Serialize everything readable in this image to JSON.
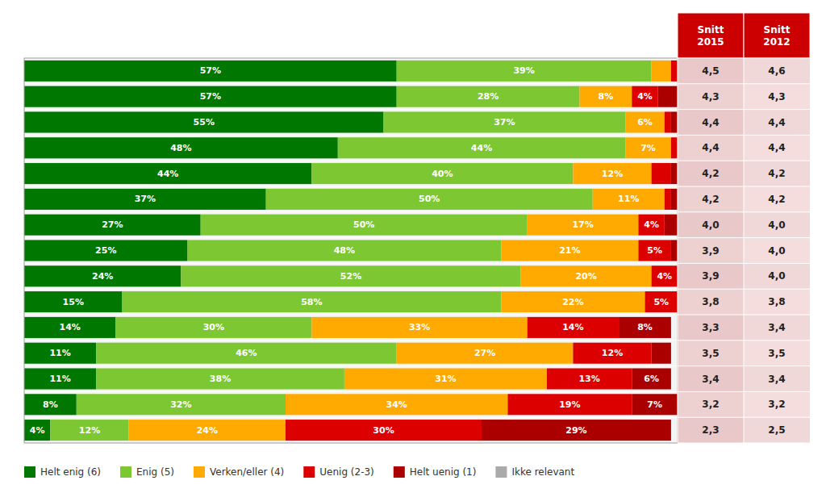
{
  "chart_data": {
    "type": "bar",
    "orientation": "horizontal",
    "stacked": true,
    "data_labels": true,
    "tick_labels": false,
    "xlim": [
      0,
      100
    ],
    "categories": [
      null,
      null,
      null,
      null,
      null,
      null,
      null,
      null,
      null,
      null,
      null,
      null,
      null,
      null,
      null
    ],
    "series": [
      {
        "name": "Helt enig (6)",
        "color": "#007700",
        "values": [
          57,
          57,
          55,
          48,
          44,
          37,
          27,
          25,
          24,
          15,
          14,
          11,
          11,
          8,
          4
        ],
        "value_labels": [
          "57%",
          "57%",
          "55%",
          "48%",
          "44%",
          "37%",
          "27%",
          "25%",
          "24%",
          "15%",
          "14%",
          "11%",
          "11%",
          "8%",
          "4%"
        ]
      },
      {
        "name": "Enig (5)",
        "color": "#7DC832",
        "values": [
          39,
          28,
          37,
          44,
          40,
          50,
          50,
          48,
          52,
          58,
          30,
          46,
          38,
          32,
          12
        ],
        "value_labels": [
          "39%",
          "28%",
          "37%",
          "44%",
          "40%",
          "50%",
          "50%",
          "48%",
          "52%",
          "58%",
          "30%",
          "46%",
          "38%",
          "32%",
          "12%"
        ]
      },
      {
        "name": "Verken/eller (4)",
        "color": "#FFAA00",
        "values": [
          3,
          8,
          6,
          7,
          12,
          11,
          17,
          21,
          20,
          22,
          33,
          27,
          31,
          34,
          24
        ],
        "value_labels": [
          null,
          "8%",
          "6%",
          "7%",
          "12%",
          "11%",
          "17%",
          "21%",
          "20%",
          "22%",
          "33%",
          "27%",
          "31%",
          "34%",
          "24%"
        ]
      },
      {
        "name": "Uenig (2-3)",
        "color": "#DD0000",
        "values": [
          1,
          4,
          1,
          1,
          3,
          1,
          4,
          5,
          4,
          5,
          14,
          12,
          13,
          19,
          30
        ],
        "value_labels": [
          null,
          "4%",
          null,
          null,
          null,
          null,
          "4%",
          "5%",
          "4%",
          "5%",
          "14%",
          "12%",
          "13%",
          "19%",
          "30%"
        ]
      },
      {
        "name": "Helt uenig (1)",
        "color": "#AA0000",
        "values": [
          0,
          3,
          1,
          0,
          1,
          1,
          2,
          1,
          0,
          0,
          8,
          3,
          6,
          7,
          29
        ],
        "value_labels": [
          null,
          null,
          null,
          null,
          null,
          null,
          null,
          null,
          null,
          null,
          "8%",
          null,
          "6%",
          "7%",
          "29%"
        ]
      },
      {
        "name": "Ikke relevant",
        "color": "#AAAAAA",
        "values": [
          null,
          null,
          null,
          null,
          null,
          null,
          null,
          null,
          null,
          null,
          null,
          null,
          null,
          null,
          null
        ]
      },
      {
        "name": "Snitt\n2015",
        "type": "column",
        "color": "#CC0000",
        "values": [
          4.5,
          4.3,
          4.4,
          4.4,
          4.2,
          4.2,
          4.0,
          3.9,
          3.9,
          3.8,
          3.3,
          3.5,
          3.4,
          3.2,
          2.3
        ],
        "value_labels": [
          "4,5",
          "4,3",
          "4,4",
          "4,4",
          "4,2",
          "4,2",
          "4,0",
          "3,9",
          "3,9",
          "3,8",
          "3,3",
          "3,5",
          "3,4",
          "3,2",
          "2,3"
        ]
      },
      {
        "name": "Snitt\n2012",
        "type": "column",
        "color": "#CC0000",
        "values": [
          4.6,
          4.3,
          4.4,
          4.4,
          4.2,
          4.2,
          4.0,
          4.0,
          4.0,
          3.8,
          3.4,
          3.5,
          3.4,
          3.2,
          2.5
        ],
        "value_labels": [
          "4,6",
          "4,3",
          "4,4",
          "4,4",
          "4,2",
          "4,2",
          "4,0",
          "4,0",
          "4,0",
          "3,8",
          "3,4",
          "3,5",
          "3,4",
          "3,2",
          "2,5"
        ]
      }
    ]
  }
}
